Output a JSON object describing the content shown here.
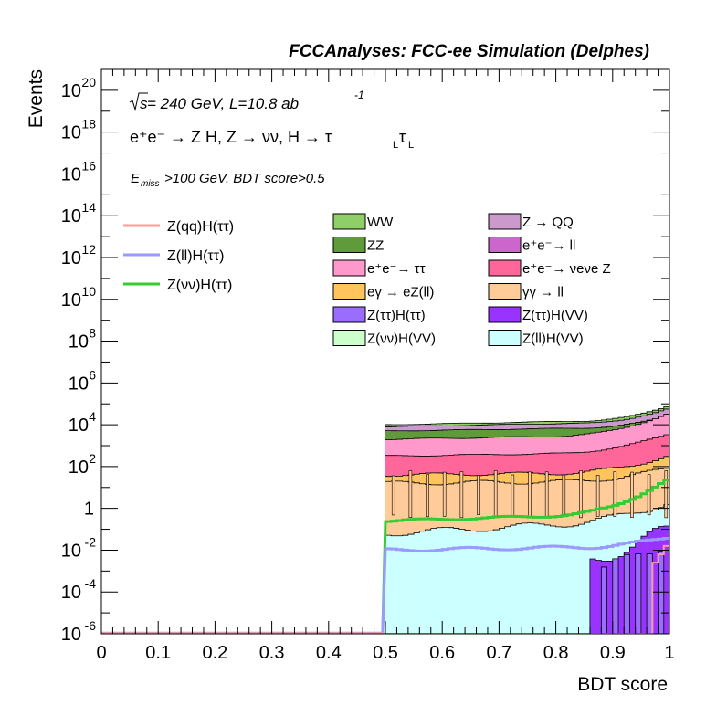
{
  "header": {
    "title": "FCCAnalyses: FCC-ee Simulation (Delphes)"
  },
  "annotations": {
    "energy_sqrt": "s",
    "energy_rest": " = 240 GeV, L=10.8 ab",
    "lumi_exp": "-1",
    "process": "e⁺e⁻ → Z H, Z → νν, H → τ",
    "process_sub1": "L",
    "process_tau2": "τ",
    "process_sub2": "L",
    "selection_E": "E",
    "selection_sub": "miss",
    "selection_rest": ">100 GeV, BDT score>0.5"
  },
  "axes": {
    "xlabel": "BDT score",
    "ylabel": "Events",
    "x_ticks": [
      "0",
      "0.1",
      "0.2",
      "0.3",
      "0.4",
      "0.5",
      "0.6",
      "0.7",
      "0.8",
      "0.9",
      "1"
    ],
    "y_ticks": [
      {
        "base": "10",
        "exp": "20",
        "value": 20
      },
      {
        "base": "10",
        "exp": "18",
        "value": 18
      },
      {
        "base": "10",
        "exp": "16",
        "value": 16
      },
      {
        "base": "10",
        "exp": "14",
        "value": 14
      },
      {
        "base": "10",
        "exp": "12",
        "value": 12
      },
      {
        "base": "10",
        "exp": "10",
        "value": 10
      },
      {
        "base": "10",
        "exp": "8",
        "value": 8
      },
      {
        "base": "10",
        "exp": "6",
        "value": 6
      },
      {
        "base": "10",
        "exp": "4",
        "value": 4
      },
      {
        "base": "10",
        "exp": "2",
        "value": 2
      },
      {
        "base": "1",
        "exp": "",
        "value": 0
      },
      {
        "base": "10",
        "exp": "-2",
        "value": -2
      },
      {
        "base": "10",
        "exp": "-4",
        "value": -4
      },
      {
        "base": "10",
        "exp": "-6",
        "value": -6
      }
    ]
  },
  "legend": {
    "signals": [
      {
        "label": "Z(qq)H(ττ)",
        "color": "#ff9a9a"
      },
      {
        "label": "Z(ll)H(ττ)",
        "color": "#9b9bff"
      },
      {
        "label": "Z(νν)H(ττ)",
        "color": "#33cc33"
      }
    ],
    "backgrounds_col1": [
      {
        "label": "WW",
        "color": "#8fcf67"
      },
      {
        "label": "ZZ",
        "color": "#5f9a3b"
      },
      {
        "label": "e⁺e⁻→ ττ",
        "color": "#ff99cc"
      },
      {
        "label": "eγ → eZ(ll)",
        "color": "#ffc45e"
      },
      {
        "label": "Z(ττ)H(ττ)",
        "color": "#9b6dff"
      },
      {
        "label": "Z(νν)H(VV)",
        "color": "#ccffcc"
      }
    ],
    "backgrounds_col2": [
      {
        "label": "Z → QQ",
        "color": "#cc99cc"
      },
      {
        "label": "e⁺e⁻→ ll",
        "color": "#cc66cc"
      },
      {
        "label": "e⁺e⁻→ νeνe Z",
        "color": "#ff6699"
      },
      {
        "label": "γγ → ll",
        "color": "#ffcc99"
      },
      {
        "label": "Z(ττ)H(VV)",
        "color": "#9933ff"
      },
      {
        "label": "Z(ll)H(VV)",
        "color": "#ccffff"
      }
    ]
  },
  "chart_data": {
    "type": "area",
    "title": "FCCAnalyses: FCC-ee Simulation (Delphes)",
    "xlabel": "BDT score",
    "ylabel": "Events",
    "xlim": [
      0,
      1
    ],
    "ylim": [
      1e-06,
      1e+21
    ],
    "y_scale": "log",
    "legend_placement": "top",
    "stacked_backgrounds": {
      "x_start": 0.5,
      "x_end": 1.0,
      "description_levels_log10": {
        "Z(ll)H(VV)": [
          -6,
          -2,
          -1,
          -0.5
        ],
        "e+e- -> tautau upper": [
          2.5,
          2.6,
          2.9,
          3.3
        ],
        "WW total": [
          4.0,
          4.05,
          4.2,
          4.8
        ]
      }
    },
    "series": [
      {
        "name": "WW",
        "x": [
          0.5,
          0.6,
          0.7,
          0.8,
          0.9,
          0.97,
          1.0
        ],
        "values": [
          10000,
          11000,
          12000,
          14000,
          20000,
          50000,
          60000
        ]
      },
      {
        "name": "ZZ",
        "x": [
          0.5,
          0.6,
          0.7,
          0.8,
          0.9,
          0.97,
          1.0
        ],
        "values": [
          5000,
          5500,
          6000,
          7000,
          10000,
          15000,
          20000
        ]
      },
      {
        "name": "e⁺e⁻→ ττ",
        "x": [
          0.5,
          0.6,
          0.7,
          0.8,
          0.9,
          0.97,
          1.0
        ],
        "values": [
          1000,
          1100,
          1300,
          1700,
          3000,
          6000,
          8000
        ]
      },
      {
        "name": "eγ → eZ(ll)",
        "x": [
          0.5,
          0.6,
          0.7,
          0.8,
          0.9,
          0.97,
          1.0
        ],
        "values": [
          30,
          35,
          40,
          50,
          80,
          150,
          200
        ]
      },
      {
        "name": "Z(νν)H(ττ)",
        "x": [
          0.5,
          0.51,
          0.55,
          0.6,
          0.7,
          0.8,
          0.9,
          0.95,
          0.98,
          1.0
        ],
        "values": [
          1e-06,
          0.5,
          0.3,
          0.3,
          0.4,
          0.6,
          2,
          8,
          50,
          300
        ]
      },
      {
        "name": "Z(ll)H(ττ)",
        "x": [
          0.5,
          0.51,
          0.6,
          0.7,
          0.8,
          0.9,
          0.95,
          1.0
        ],
        "values": [
          1e-06,
          0.01,
          0.01,
          0.012,
          0.015,
          0.03,
          0.05,
          0.1
        ]
      },
      {
        "name": "Z(qq)H(ττ)",
        "x": [
          0.97,
          0.98,
          1.0
        ],
        "values": [
          1e-06,
          0.001,
          0.002
        ]
      }
    ]
  }
}
